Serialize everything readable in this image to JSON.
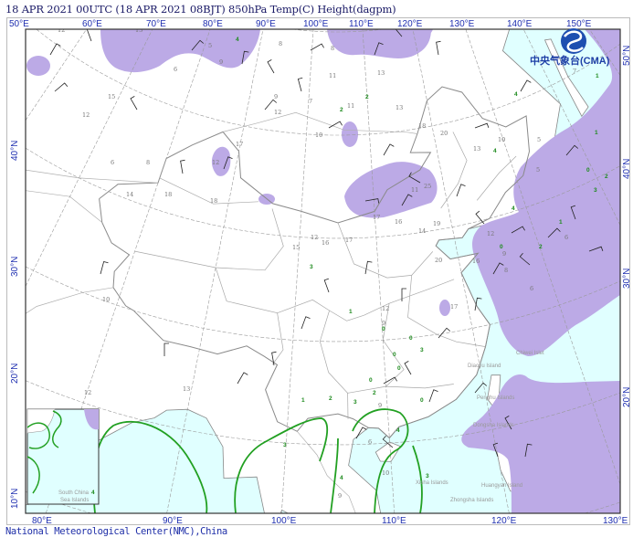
{
  "header": {
    "title": "18 APR 2021 00UTC (18 APR 2021 08BJT) 850hPa Temp(C) Height(dagpm)"
  },
  "footer": {
    "credit": "National Meteorological Center(NMC),China"
  },
  "logo": {
    "text": "中央气象台(CMA)",
    "icon": "cma-swirl-logo-icon"
  },
  "axes": {
    "top_lon": [
      "50°E",
      "60°E",
      "70°E",
      "80°E",
      "90°E",
      "100°E",
      "110°E",
      "120°E",
      "130°E",
      "140°E",
      "150°E"
    ],
    "bottom_lon": [
      "80°E",
      "90°E",
      "100°E",
      "110°E",
      "120°E",
      "130°E"
    ],
    "left_lat": [
      "40°N",
      "30°N",
      "20°N",
      "10°N"
    ],
    "right_lat": [
      "50°N",
      "40°N",
      "30°N",
      "20°N"
    ]
  },
  "islands": [
    "Chiwei Islet",
    "Diaoyu Island",
    "Penghu Islands",
    "Dongsha Islands",
    "Huangyan Island",
    "Zhongsha Islands",
    "Xisha Islands",
    "South China",
    "Sea Islands"
  ],
  "colors": {
    "sea": "#e0ffff",
    "shading": "#bcaae6",
    "contour": "#22a022",
    "border": "#999999",
    "axis_text": "#1f2fb0",
    "temp_text": "#777777",
    "temp_text_low": "#1d8a1d"
  },
  "stations": [
    {
      "t": "12"
    },
    {
      "t": "13"
    },
    {
      "t": "9"
    },
    {
      "t": "5"
    },
    {
      "t": "6"
    },
    {
      "t": "12"
    },
    {
      "t": "15"
    },
    {
      "t": "6"
    },
    {
      "t": "8"
    },
    {
      "t": "14"
    },
    {
      "t": "18"
    },
    {
      "t": "18"
    },
    {
      "t": "12"
    },
    {
      "t": "17"
    },
    {
      "t": "12"
    },
    {
      "t": "9"
    },
    {
      "t": "7"
    },
    {
      "t": "11"
    },
    {
      "t": "8"
    },
    {
      "t": "4",
      "green": true
    },
    {
      "t": "8"
    },
    {
      "t": "11"
    },
    {
      "t": "2",
      "green": true
    },
    {
      "t": "10"
    },
    {
      "t": "2",
      "green": true
    },
    {
      "t": "13"
    },
    {
      "t": "13"
    },
    {
      "t": "18"
    },
    {
      "t": "20"
    },
    {
      "t": "13"
    },
    {
      "t": "4",
      "green": true
    },
    {
      "t": "11"
    },
    {
      "t": "25"
    },
    {
      "t": "17"
    },
    {
      "t": "16"
    },
    {
      "t": "12"
    },
    {
      "t": "17"
    },
    {
      "t": "16"
    },
    {
      "t": "15"
    },
    {
      "t": "3",
      "green": true
    },
    {
      "t": "19"
    },
    {
      "t": "14"
    },
    {
      "t": "20"
    },
    {
      "t": "16"
    },
    {
      "t": "9"
    },
    {
      "t": "8"
    },
    {
      "t": "12"
    },
    {
      "t": "0",
      "green": true
    },
    {
      "t": "2",
      "green": true
    },
    {
      "t": "6"
    },
    {
      "t": "1",
      "green": true
    },
    {
      "t": "3",
      "green": true
    },
    {
      "t": "2",
      "green": true
    },
    {
      "t": "0",
      "green": true
    },
    {
      "t": "17"
    },
    {
      "t": "3",
      "green": true
    },
    {
      "t": "12"
    },
    {
      "t": "1",
      "green": true
    },
    {
      "t": "9"
    },
    {
      "t": "0",
      "green": true
    },
    {
      "t": "0",
      "green": true
    },
    {
      "t": "0",
      "green": true
    },
    {
      "t": "2",
      "green": true
    },
    {
      "t": "0",
      "green": true
    },
    {
      "t": "0",
      "green": true
    },
    {
      "t": "0",
      "green": true
    },
    {
      "t": "1",
      "green": true
    },
    {
      "t": "2",
      "green": true
    },
    {
      "t": "3",
      "green": true
    },
    {
      "t": "9"
    },
    {
      "t": "13"
    },
    {
      "t": "10"
    },
    {
      "t": "12"
    },
    {
      "t": "2",
      "green": true
    },
    {
      "t": "3",
      "green": true
    },
    {
      "t": "4",
      "green": true
    },
    {
      "t": "9"
    },
    {
      "t": "10"
    },
    {
      "t": "6"
    },
    {
      "t": "4",
      "green": true
    },
    {
      "t": "3",
      "green": true
    },
    {
      "t": "4",
      "green": true
    },
    {
      "t": "6"
    },
    {
      "t": "10"
    },
    {
      "t": "7"
    },
    {
      "t": "1",
      "green": true
    },
    {
      "t": "4",
      "green": true
    },
    {
      "t": "5"
    },
    {
      "t": "5"
    },
    {
      "t": "1",
      "green": true
    }
  ]
}
